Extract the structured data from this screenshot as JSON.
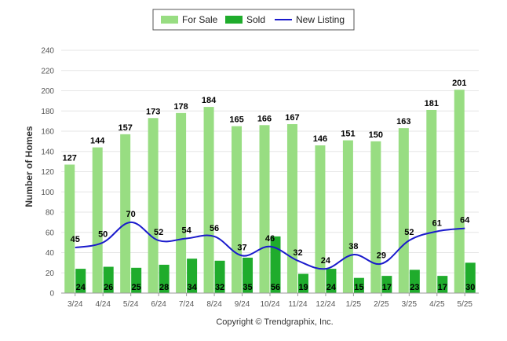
{
  "chart_data": {
    "type": "bar",
    "ylabel": "Number of Homes",
    "xlabel": "",
    "ylim": [
      0,
      240
    ],
    "yticks": [
      0,
      20,
      40,
      60,
      80,
      100,
      120,
      140,
      160,
      180,
      200,
      220,
      240
    ],
    "grid": true,
    "legend_position": "top-center",
    "categories": [
      "3/24",
      "4/24",
      "5/24",
      "6/24",
      "7/24",
      "8/24",
      "9/24",
      "10/24",
      "11/24",
      "12/24",
      "1/25",
      "2/25",
      "3/25",
      "4/25",
      "5/25"
    ],
    "series": [
      {
        "name": "For Sale",
        "kind": "bar",
        "color": "#98dd82",
        "values": [
          127,
          144,
          157,
          173,
          178,
          184,
          165,
          166,
          167,
          146,
          151,
          150,
          163,
          181,
          201
        ]
      },
      {
        "name": "Sold",
        "kind": "bar",
        "color": "#1fac2c",
        "values": [
          24,
          26,
          25,
          28,
          34,
          32,
          35,
          56,
          19,
          24,
          15,
          17,
          23,
          17,
          30
        ]
      },
      {
        "name": "New Listing",
        "kind": "line",
        "color": "#1a1acc",
        "values": [
          45,
          50,
          70,
          52,
          54,
          56,
          37,
          46,
          32,
          24,
          38,
          29,
          52,
          61,
          64
        ]
      }
    ]
  },
  "footer": {
    "copyright": "Copyright © Trendgraphix, Inc."
  }
}
